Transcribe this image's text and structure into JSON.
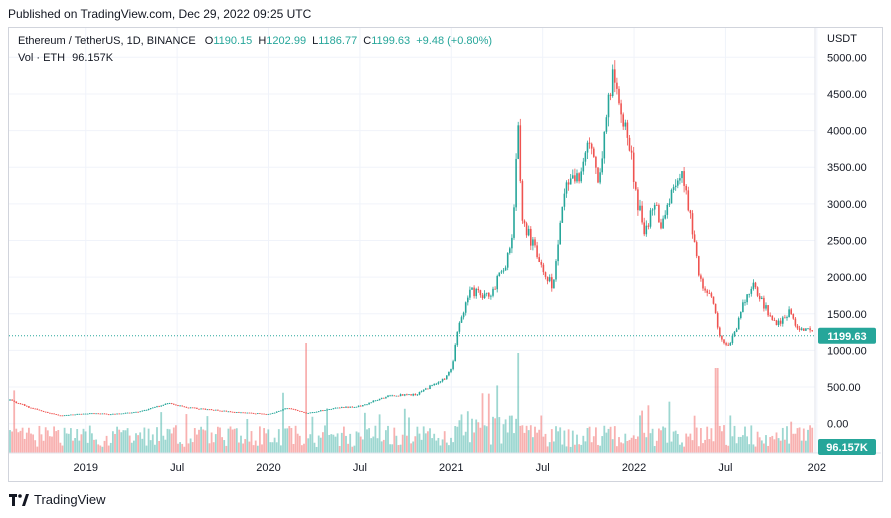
{
  "header": {
    "published": "Published on TradingView.com, Dec 29, 2022 09:25 UTC"
  },
  "legend": {
    "symbol": "Ethereum / TetherUS, 1D, BINANCE",
    "o_label": "O",
    "open": "1190.15",
    "h_label": "H",
    "high": "1202.99",
    "l_label": "L",
    "low": "1186.77",
    "c_label": "C",
    "close": "1199.63",
    "change": "+9.48 (+0.80%)",
    "vol_label": "Vol · ETH",
    "vol_value": "96.157K"
  },
  "footer": {
    "brand": "TradingView"
  },
  "colors": {
    "up": "#26a69a",
    "down": "#ef5350",
    "price_tag": "#26a69a",
    "grid": "#f0f3fa",
    "axis_text": "#131722"
  },
  "chart_data": {
    "type": "candlestick",
    "title": "Ethereum / TetherUS, 1D, BINANCE",
    "currency_label": "USDT",
    "y_ticks": [
      "5000.00",
      "4500.00",
      "4000.00",
      "3500.00",
      "3000.00",
      "2500.00",
      "2000.00",
      "1500.00",
      "1000.00",
      "500.00",
      "0.00"
    ],
    "y_tick_values": [
      5000,
      4500,
      4000,
      3500,
      3000,
      2500,
      2000,
      1500,
      1000,
      500,
      0
    ],
    "ylim": [
      -400,
      5400
    ],
    "x_ticks": [
      "2019",
      "Jul",
      "2020",
      "Jul",
      "2021",
      "Jul",
      "2022",
      "Jul",
      "202"
    ],
    "x_tick_positions": [
      2019.0,
      2019.5,
      2020.0,
      2020.5,
      2021.0,
      2021.5,
      2022.0,
      2022.5,
      2023.0
    ],
    "xlim": [
      2018.58,
      2022.99
    ],
    "last_price": "1199.63",
    "last_price_value": 1199.63,
    "volume_label": "96.157K",
    "price_path": [
      [
        2018.58,
        320
      ],
      [
        2018.7,
        210
      ],
      [
        2018.85,
        110
      ],
      [
        2019.0,
        140
      ],
      [
        2019.15,
        130
      ],
      [
        2019.3,
        170
      ],
      [
        2019.45,
        280
      ],
      [
        2019.55,
        220
      ],
      [
        2019.7,
        185
      ],
      [
        2019.85,
        150
      ],
      [
        2020.0,
        130
      ],
      [
        2020.1,
        220
      ],
      [
        2020.2,
        140
      ],
      [
        2020.35,
        210
      ],
      [
        2020.5,
        240
      ],
      [
        2020.65,
        380
      ],
      [
        2020.8,
        400
      ],
      [
        2020.95,
        600
      ],
      [
        2021.0,
        750
      ],
      [
        2021.03,
        1300
      ],
      [
        2021.1,
        1800
      ],
      [
        2021.2,
        1750
      ],
      [
        2021.28,
        2100
      ],
      [
        2021.33,
        2500
      ],
      [
        2021.36,
        4200
      ],
      [
        2021.38,
        2800
      ],
      [
        2021.45,
        2400
      ],
      [
        2021.5,
        2000
      ],
      [
        2021.55,
        1900
      ],
      [
        2021.62,
        3200
      ],
      [
        2021.7,
        3400
      ],
      [
        2021.75,
        3800
      ],
      [
        2021.8,
        3300
      ],
      [
        2021.85,
        4400
      ],
      [
        2021.88,
        4700
      ],
      [
        2021.93,
        4200
      ],
      [
        2021.97,
        3800
      ],
      [
        2022.0,
        3200
      ],
      [
        2022.05,
        2600
      ],
      [
        2022.1,
        3000
      ],
      [
        2022.15,
        2700
      ],
      [
        2022.22,
        3300
      ],
      [
        2022.25,
        3400
      ],
      [
        2022.3,
        2900
      ],
      [
        2022.35,
        2000
      ],
      [
        2022.42,
        1700
      ],
      [
        2022.47,
        1150
      ],
      [
        2022.5,
        1050
      ],
      [
        2022.55,
        1250
      ],
      [
        2022.6,
        1700
      ],
      [
        2022.65,
        1900
      ],
      [
        2022.72,
        1550
      ],
      [
        2022.78,
        1350
      ],
      [
        2022.85,
        1550
      ],
      [
        2022.88,
        1300
      ],
      [
        2022.93,
        1280
      ],
      [
        2022.99,
        1199.63
      ]
    ]
  }
}
